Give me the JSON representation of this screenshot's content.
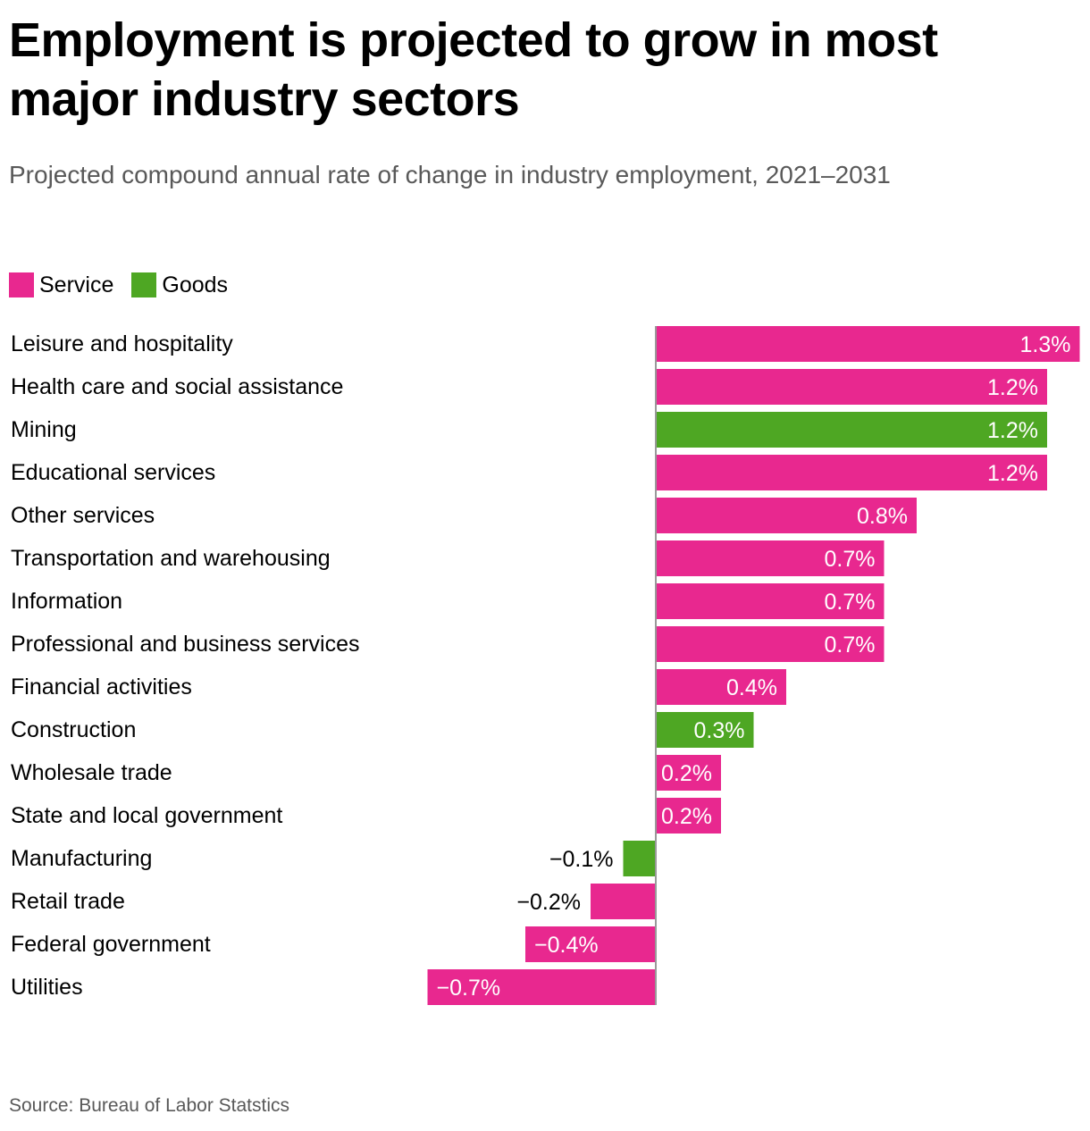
{
  "header": {
    "title": "Employment is projected to grow in most major industry sectors",
    "subtitle": "Projected compound annual rate of change in industry employment, 2021–2031"
  },
  "legend": [
    {
      "label": "Service",
      "color": "#e8288f"
    },
    {
      "label": "Goods",
      "color": "#4ea723"
    }
  ],
  "colors": {
    "Service": "#e8288f",
    "Goods": "#4ea723",
    "axis": "#999999"
  },
  "chart_data": {
    "type": "bar",
    "orientation": "horizontal",
    "title": "Employment is projected to grow in most major industry sectors",
    "subtitle": "Projected compound annual rate of change in industry employment, 2021–2031",
    "categories": [
      "Leisure and hospitality",
      "Health care and social assistance",
      "Mining",
      "Educational services",
      "Other services",
      "Transportation and warehousing",
      "Information",
      "Professional and business services",
      "Financial activities",
      "Construction",
      "Wholesale trade",
      "State and local government",
      "Manufacturing",
      "Retail trade",
      "Federal government",
      "Utilities"
    ],
    "values": [
      1.3,
      1.2,
      1.2,
      1.2,
      0.8,
      0.7,
      0.7,
      0.7,
      0.4,
      0.3,
      0.2,
      0.2,
      -0.1,
      -0.2,
      -0.4,
      -0.7
    ],
    "groups": [
      "Service",
      "Service",
      "Goods",
      "Service",
      "Service",
      "Service",
      "Service",
      "Service",
      "Service",
      "Goods",
      "Service",
      "Service",
      "Goods",
      "Service",
      "Service",
      "Service"
    ],
    "value_labels": [
      "1.3%",
      "1.2%",
      "1.2%",
      "1.2%",
      "0.8%",
      "0.7%",
      "0.7%",
      "0.7%",
      "0.4%",
      "0.3%",
      "0.2%",
      "0.2%",
      "−0.1%",
      "−0.2%",
      "−0.4%",
      "−0.7%"
    ],
    "xlim": [
      -0.7,
      1.3
    ],
    "grid": false,
    "legend_position": "top-left"
  },
  "footer": {
    "source": "Source: Bureau of Labor Statstics"
  }
}
